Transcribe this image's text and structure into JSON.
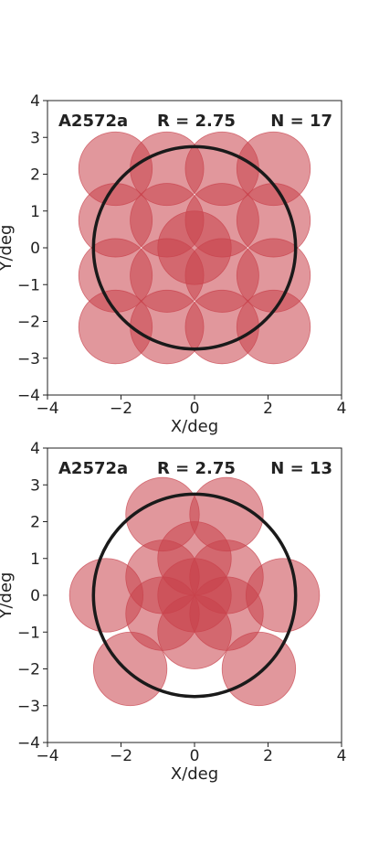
{
  "chart_data": [
    {
      "type": "scatter",
      "title_parts": [
        "A2572a",
        "R = 2.75",
        "N = 17"
      ],
      "xlabel": "X/deg",
      "ylabel": "Y/deg",
      "xlim": [
        -4,
        4
      ],
      "ylim": [
        -4,
        4
      ],
      "xticks": [
        -4,
        -2,
        0,
        2,
        4
      ],
      "yticks": [
        -4,
        -3,
        -2,
        -1,
        0,
        1,
        2,
        3,
        4
      ],
      "xtick_labels": [
        "−4",
        "−2",
        "0",
        "2",
        "4"
      ],
      "ytick_labels": [
        "−4",
        "−3",
        "−2",
        "−1",
        "0",
        "1",
        "2",
        "3",
        "4"
      ],
      "grid": false,
      "pointing_radius": 1.0,
      "pointings": [
        {
          "x": 0,
          "y": 0
        },
        {
          "x": -2.15,
          "y": 2.15
        },
        {
          "x": -0.75,
          "y": 2.15
        },
        {
          "x": 0.75,
          "y": 2.15
        },
        {
          "x": 2.15,
          "y": 2.15
        },
        {
          "x": -2.15,
          "y": 0.75
        },
        {
          "x": -0.75,
          "y": 0.75
        },
        {
          "x": 0.75,
          "y": 0.75
        },
        {
          "x": 2.15,
          "y": 0.75
        },
        {
          "x": -2.15,
          "y": -0.75
        },
        {
          "x": -0.75,
          "y": -0.75
        },
        {
          "x": 0.75,
          "y": -0.75
        },
        {
          "x": 2.15,
          "y": -0.75
        },
        {
          "x": -2.15,
          "y": -2.15
        },
        {
          "x": -0.75,
          "y": -2.15
        },
        {
          "x": 0.75,
          "y": -2.15
        },
        {
          "x": 2.15,
          "y": -2.15
        }
      ],
      "outer_circle": {
        "x": 0,
        "y": 0,
        "r": 2.75
      },
      "pointing_color": "#c8414b",
      "outline_color": "#1a1a1a"
    },
    {
      "type": "scatter",
      "title_parts": [
        "A2572a",
        "R = 2.75",
        "N = 13"
      ],
      "xlabel": "X/deg",
      "ylabel": "Y/deg",
      "xlim": [
        -4,
        4
      ],
      "ylim": [
        -4,
        4
      ],
      "xticks": [
        -4,
        -2,
        0,
        2,
        4
      ],
      "yticks": [
        -4,
        -3,
        -2,
        -1,
        0,
        1,
        2,
        3,
        4
      ],
      "xtick_labels": [
        "−4",
        "−2",
        "0",
        "2",
        "4"
      ],
      "ytick_labels": [
        "−4",
        "−3",
        "−2",
        "−1",
        "0",
        "1",
        "2",
        "3",
        "4"
      ],
      "grid": false,
      "pointing_radius": 1.0,
      "pointings": [
        {
          "x": 0,
          "y": 0
        },
        {
          "x": 0.87,
          "y": 0.5
        },
        {
          "x": 0,
          "y": 1.0
        },
        {
          "x": -0.87,
          "y": 0.5
        },
        {
          "x": -0.87,
          "y": -0.5
        },
        {
          "x": 0,
          "y": -1.0
        },
        {
          "x": 0.87,
          "y": -0.5
        },
        {
          "x": 0.87,
          "y": 2.2
        },
        {
          "x": -0.87,
          "y": 2.2
        },
        {
          "x": -2.4,
          "y": 0
        },
        {
          "x": 2.4,
          "y": 0
        },
        {
          "x": -1.75,
          "y": -2.0
        },
        {
          "x": 1.75,
          "y": -2.0
        }
      ],
      "outer_circle": {
        "x": 0,
        "y": 0,
        "r": 2.75
      },
      "pointing_color": "#c8414b",
      "outline_color": "#1a1a1a"
    }
  ]
}
